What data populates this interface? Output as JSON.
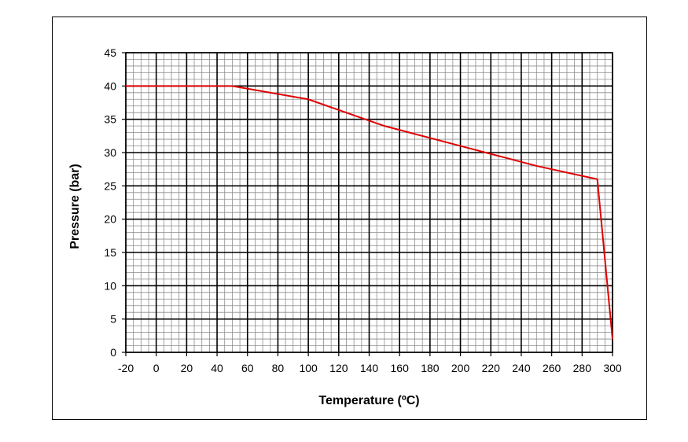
{
  "chart_data": {
    "type": "line",
    "xlabel": "Temperature (ºC)",
    "ylabel": "Pressure (bar)",
    "xlim": [
      -20,
      300
    ],
    "ylim": [
      0,
      45
    ],
    "x_major_step": 20,
    "x_minor_step": 5,
    "y_major_step": 5,
    "y_minor_step": 1,
    "x_ticks": [
      "-20",
      "0",
      "20",
      "40",
      "60",
      "80",
      "100",
      "120",
      "140",
      "160",
      "180",
      "200",
      "220",
      "240",
      "260",
      "280",
      "300"
    ],
    "y_ticks": [
      "0",
      "5",
      "10",
      "15",
      "20",
      "25",
      "30",
      "35",
      "40",
      "45"
    ],
    "grid": true,
    "series": [
      {
        "color": "#e00000",
        "x": [
          -20,
          50,
          100,
          150,
          200,
          250,
          290,
          300
        ],
        "y": [
          40,
          40,
          38,
          34,
          31,
          28,
          26,
          2
        ]
      }
    ]
  }
}
